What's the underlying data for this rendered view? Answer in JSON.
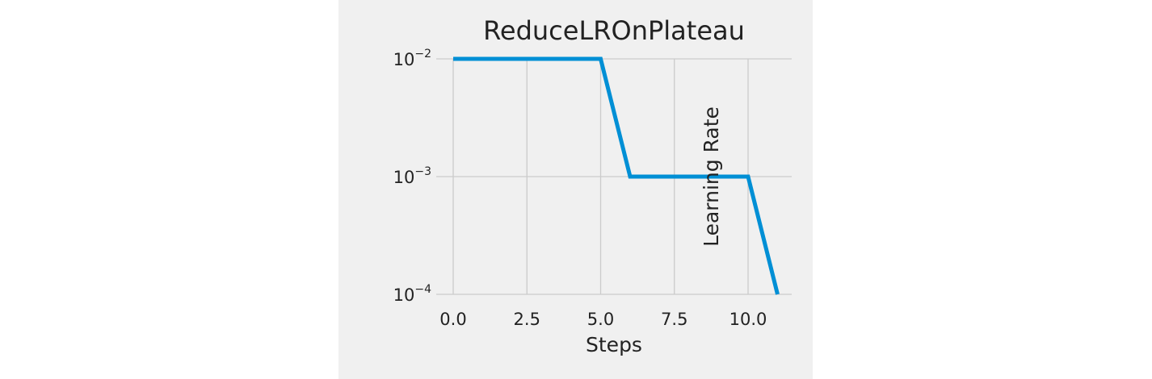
{
  "chart_data": {
    "type": "line",
    "title": "ReduceLROnPlateau",
    "xlabel": "Steps",
    "ylabel": "Learning Rate",
    "xscale": "linear",
    "yscale": "log",
    "xlim": [
      -0.55,
      11.55
    ],
    "ylim": [
      0.0001,
      0.01
    ],
    "xticks": [
      0.0,
      2.5,
      5.0,
      7.5,
      10.0
    ],
    "xtick_labels": [
      "0.0",
      "2.5",
      "5.0",
      "7.5",
      "10.0"
    ],
    "yticks": [
      0.0001,
      0.001,
      0.01
    ],
    "ytick_labels": [
      {
        "base": "10",
        "exp": "−4"
      },
      {
        "base": "10",
        "exp": "−3"
      },
      {
        "base": "10",
        "exp": "−2"
      }
    ],
    "grid": true,
    "legend": "none",
    "series": [
      {
        "color": "#008fd5",
        "x": [
          0,
          1,
          2,
          3,
          4,
          5,
          6,
          7,
          8,
          9,
          10,
          11
        ],
        "y": [
          0.01,
          0.01,
          0.01,
          0.01,
          0.01,
          0.01,
          0.001,
          0.001,
          0.001,
          0.001,
          0.001,
          0.0001
        ]
      }
    ]
  },
  "colors": {
    "figure_background": "#f0f0f0",
    "grid": "#cbcbcb",
    "line": "#008fd5",
    "text": "#222222"
  }
}
